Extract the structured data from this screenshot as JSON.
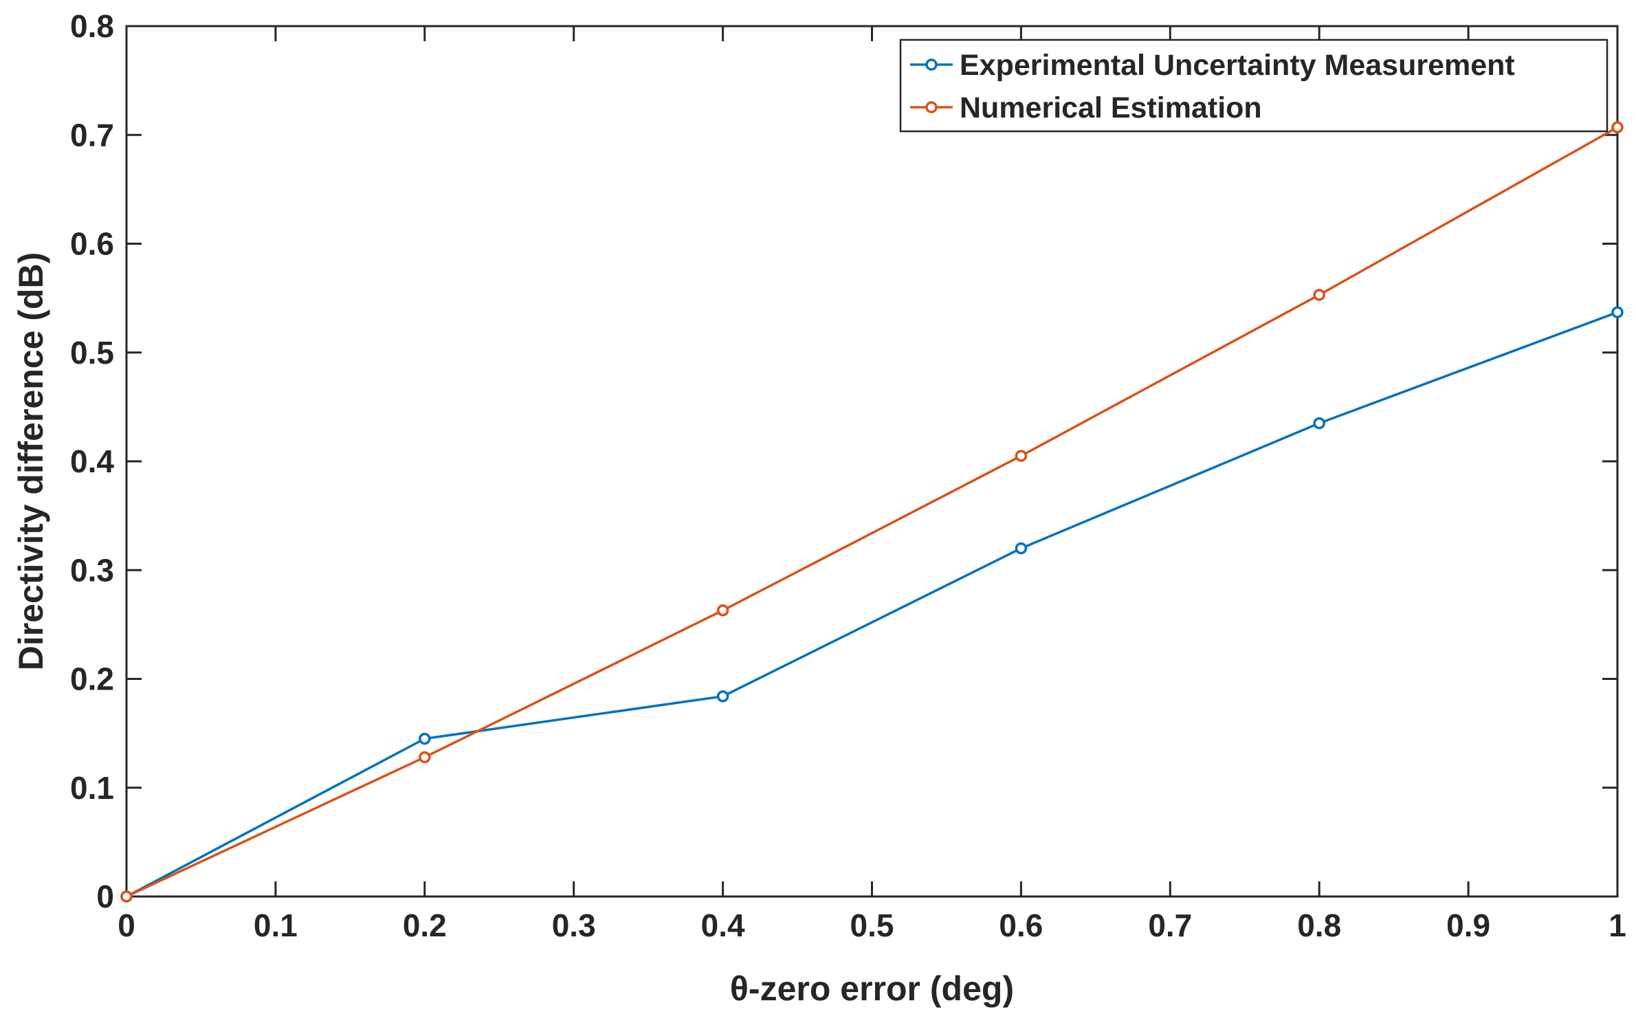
{
  "chart_data": {
    "type": "line",
    "title": "",
    "xlabel": "θ-zero error (deg)",
    "ylabel": "Directivity difference (dB)",
    "xlim": [
      0,
      1
    ],
    "ylim": [
      0,
      0.8
    ],
    "xticks": [
      "0",
      "0.1",
      "0.2",
      "0.3",
      "0.4",
      "0.5",
      "0.6",
      "0.7",
      "0.8",
      "0.9",
      "1"
    ],
    "yticks": [
      "0",
      "0.1",
      "0.2",
      "0.3",
      "0.4",
      "0.5",
      "0.6",
      "0.7",
      "0.8"
    ],
    "grid": false,
    "legend_position": "top-right",
    "x": [
      0,
      0.2,
      0.4,
      0.6,
      0.8,
      1.0
    ],
    "series": [
      {
        "name": "Experimental Uncertainty Measurement",
        "color": "#0072BD",
        "marker": "circle",
        "values": [
          0,
          0.145,
          0.184,
          0.32,
          0.435,
          0.537
        ]
      },
      {
        "name": "Numerical Estimation",
        "color": "#D95319",
        "marker": "circle",
        "values": [
          0,
          0.128,
          0.263,
          0.405,
          0.553,
          0.707
        ]
      }
    ]
  }
}
